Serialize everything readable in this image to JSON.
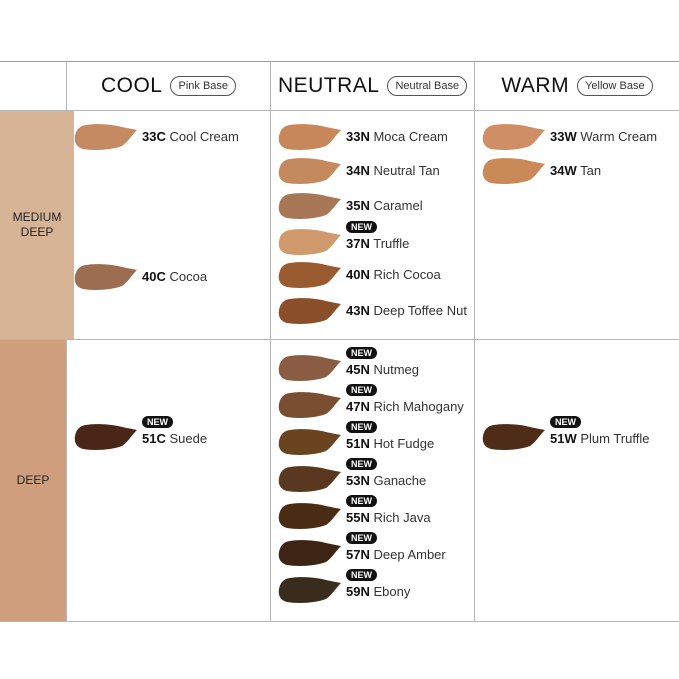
{
  "columns": [
    {
      "title": "COOL",
      "base": "Pink Base"
    },
    {
      "title": "NEUTRAL",
      "base": "Neutral Base"
    },
    {
      "title": "WARM",
      "base": "Yellow Base"
    }
  ],
  "rows": [
    {
      "label": "MEDIUM DEEP",
      "color": "#d8b496"
    },
    {
      "label": "DEEP",
      "color": "#cf9e7c"
    }
  ],
  "badge_label": "NEW",
  "shades": [
    {
      "col": 0,
      "row": 0,
      "code": "33C",
      "name": "Cool Cream",
      "color": "#c58a62",
      "new": false
    },
    {
      "col": 0,
      "row": 0,
      "code": "40C",
      "name": "Cocoa",
      "color": "#9c6d50",
      "new": false
    },
    {
      "col": 1,
      "row": 0,
      "code": "33N",
      "name": "Moca Cream",
      "color": "#c8875a",
      "new": false
    },
    {
      "col": 1,
      "row": 0,
      "code": "34N",
      "name": "Neutral Tan",
      "color": "#c48a5e",
      "new": false
    },
    {
      "col": 1,
      "row": 0,
      "code": "35N",
      "name": "Caramel",
      "color": "#a87856",
      "new": false
    },
    {
      "col": 1,
      "row": 0,
      "code": "37N",
      "name": "Truffle",
      "color": "#d09a6c",
      "new": true
    },
    {
      "col": 1,
      "row": 0,
      "code": "40N",
      "name": "Rich Cocoa",
      "color": "#9a5a30",
      "new": false
    },
    {
      "col": 1,
      "row": 0,
      "code": "43N",
      "name": "Deep Toffee Nut",
      "color": "#8a4e28",
      "new": false
    },
    {
      "col": 2,
      "row": 0,
      "code": "33W",
      "name": "Warm Cream",
      "color": "#d08e64",
      "new": false
    },
    {
      "col": 2,
      "row": 0,
      "code": "34W",
      "name": "Tan",
      "color": "#c98a58",
      "new": false
    },
    {
      "col": 0,
      "row": 1,
      "code": "51C",
      "name": "Suede",
      "color": "#4a2618",
      "new": true
    },
    {
      "col": 1,
      "row": 1,
      "code": "45N",
      "name": "Nutmeg",
      "color": "#8a5c42",
      "new": true
    },
    {
      "col": 1,
      "row": 1,
      "code": "47N",
      "name": "Rich Mahogany",
      "color": "#7a4e30",
      "new": true
    },
    {
      "col": 1,
      "row": 1,
      "code": "51N",
      "name": "Hot Fudge",
      "color": "#6a4420",
      "new": true
    },
    {
      "col": 1,
      "row": 1,
      "code": "53N",
      "name": "Ganache",
      "color": "#5a3820",
      "new": true
    },
    {
      "col": 1,
      "row": 1,
      "code": "55N",
      "name": "Rich Java",
      "color": "#4a2c14",
      "new": true
    },
    {
      "col": 1,
      "row": 1,
      "code": "57N",
      "name": "Deep Amber",
      "color": "#3e2414",
      "new": true
    },
    {
      "col": 1,
      "row": 1,
      "code": "59N",
      "name": "Ebony",
      "color": "#3a2c1c",
      "new": true
    },
    {
      "col": 2,
      "row": 1,
      "code": "51W",
      "name": "Plum Truffle",
      "color": "#4e2c18",
      "new": true
    }
  ]
}
